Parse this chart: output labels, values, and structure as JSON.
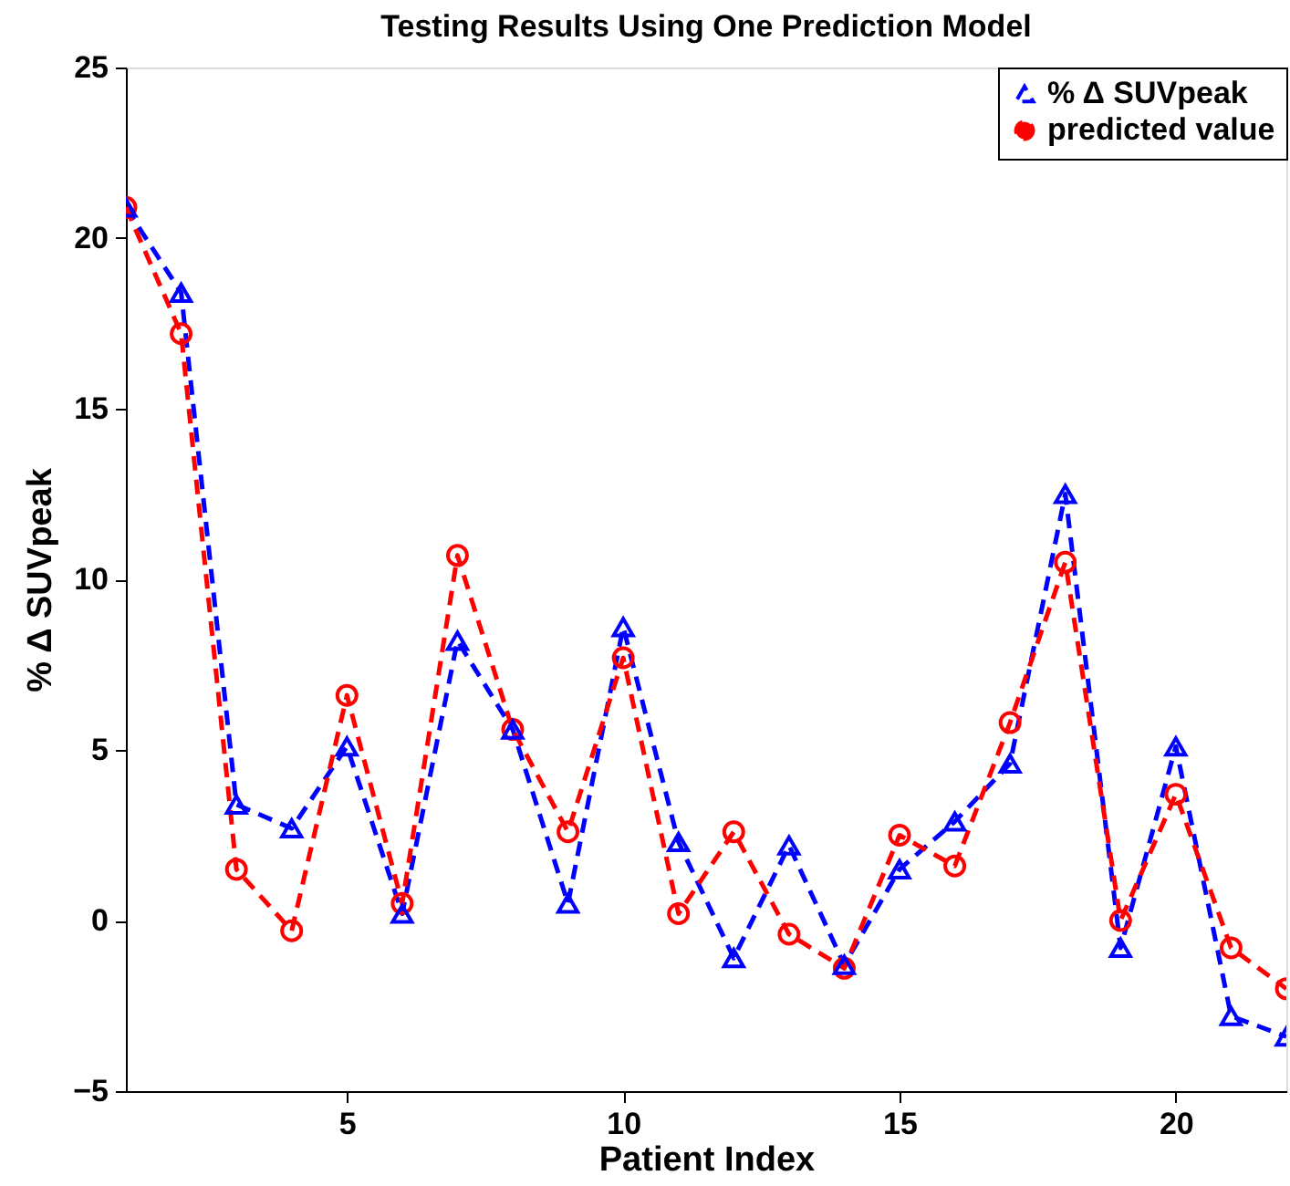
{
  "chart_data": {
    "type": "line",
    "title": "Testing Results Using One Prediction Model",
    "xlabel": "Patient Index",
    "ylabel": "% Δ SUVpeak",
    "x": [
      1,
      2,
      3,
      4,
      5,
      6,
      7,
      8,
      9,
      10,
      11,
      12,
      13,
      14,
      15,
      16,
      17,
      18,
      19,
      20,
      21,
      22
    ],
    "series": [
      {
        "name": "% Δ SUVpeak",
        "color": "#0000ff",
        "marker": "triangle",
        "line_style": "dashed",
        "values": [
          20.9,
          18.4,
          3.4,
          2.7,
          5.1,
          0.2,
          8.2,
          5.6,
          0.5,
          8.6,
          2.3,
          -1.1,
          2.2,
          -1.3,
          1.5,
          2.9,
          4.6,
          12.5,
          -0.8,
          5.1,
          -2.8,
          -3.4
        ]
      },
      {
        "name": "predicted value",
        "color": "#ff0000",
        "marker": "circle",
        "line_style": "dashed",
        "values": [
          20.9,
          17.2,
          1.5,
          -0.3,
          6.6,
          0.5,
          10.7,
          5.6,
          2.6,
          7.7,
          0.2,
          2.6,
          -0.4,
          -1.4,
          2.5,
          1.6,
          5.8,
          10.5,
          0.0,
          3.7,
          -0.8,
          -2.0
        ]
      }
    ],
    "xlim": [
      1,
      22
    ],
    "xticks": [
      5,
      10,
      15,
      20
    ],
    "ylim": [
      -5,
      25
    ],
    "yticks": [
      -5,
      0,
      5,
      10,
      15,
      20,
      25
    ],
    "grid": false,
    "legend": "top right"
  }
}
